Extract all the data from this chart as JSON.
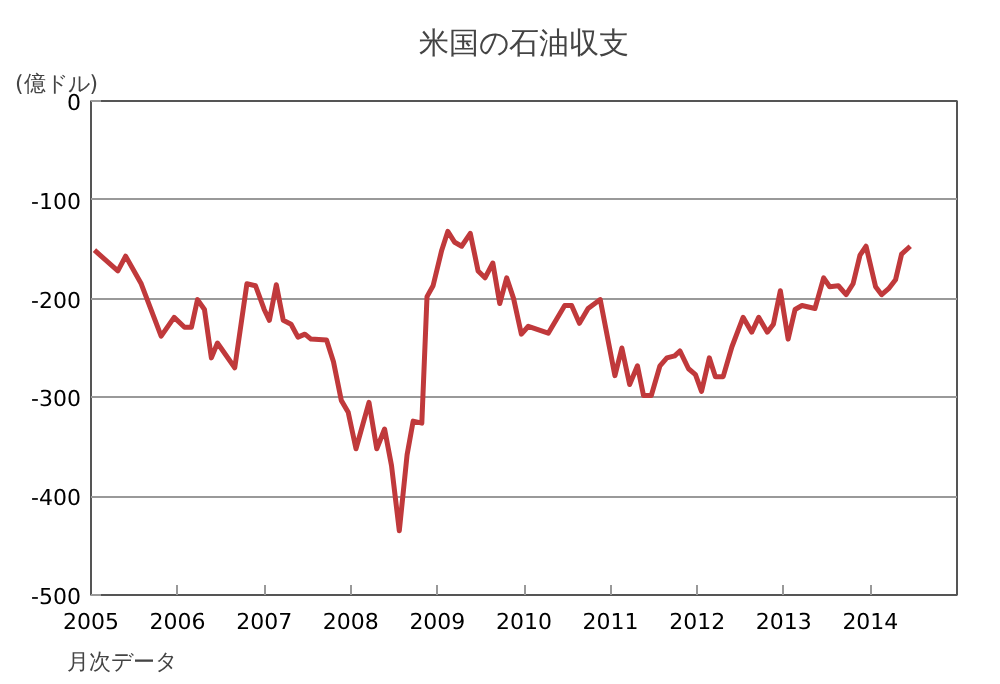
{
  "chart_data": {
    "type": "line",
    "title": "米国の石油収支",
    "ylabel": "(億ドル)",
    "annotations": [
      "月次データ"
    ],
    "x": [
      2005.04,
      2005.31,
      2005.4,
      2005.58,
      2005.81,
      2005.96,
      2006.08,
      2006.16,
      2006.23,
      2006.31,
      2006.39,
      2006.46,
      2006.66,
      2006.8,
      2006.9,
      2007.0,
      2007.06,
      2007.14,
      2007.22,
      2007.31,
      2007.39,
      2007.47,
      2007.54,
      2007.72,
      2007.8,
      2007.89,
      2007.97,
      2008.06,
      2008.21,
      2008.3,
      2008.39,
      2008.47,
      2008.56,
      2008.65,
      2008.72,
      2008.82,
      2008.88,
      2008.95,
      2009.05,
      2009.12,
      2009.2,
      2009.28,
      2009.38,
      2009.47,
      2009.55,
      2009.64,
      2009.72,
      2009.8,
      2009.88,
      2009.97,
      2010.05,
      2010.28,
      2010.47,
      2010.55,
      2010.64,
      2010.74,
      2010.88,
      2011.05,
      2011.13,
      2011.22,
      2011.31,
      2011.38,
      2011.47,
      2011.57,
      2011.65,
      2011.74,
      2011.8,
      2011.9,
      2011.98,
      2012.05,
      2012.14,
      2012.21,
      2012.3,
      2012.4,
      2012.53,
      2012.63,
      2012.71,
      2012.81,
      2012.88,
      2012.96,
      2013.05,
      2013.13,
      2013.21,
      2013.36,
      2013.46,
      2013.53,
      2013.63,
      2013.72,
      2013.8,
      2013.88,
      2013.95,
      2014.06,
      2014.13,
      2014.21,
      2014.29,
      2014.36,
      2014.46
    ],
    "series": [
      {
        "color": "#c0393b",
        "values": [
          -151,
          -172,
          -157,
          -185,
          -238,
          -219,
          -229,
          -229,
          -201,
          -211,
          -260,
          -245,
          -270,
          -185,
          -187,
          -211,
          -222,
          -186,
          -222,
          -226,
          -239,
          -236,
          -241,
          -242,
          -264,
          -303,
          -315,
          -352,
          -305,
          -352,
          -332,
          -369,
          -435,
          -358,
          -324,
          -326,
          -198,
          -187,
          -151,
          -132,
          -143,
          -147,
          -134,
          -172,
          -179,
          -164,
          -205,
          -179,
          -200,
          -236,
          -228,
          -235,
          -207,
          -207,
          -225,
          -210,
          -201,
          -278,
          -250,
          -287,
          -268,
          -298,
          -298,
          -268,
          -260,
          -258,
          -253,
          -271,
          -277,
          -294,
          -260,
          -279,
          -279,
          -249,
          -219,
          -234,
          -219,
          -234,
          -226,
          -192,
          -241,
          -211,
          -207,
          -210,
          -179,
          -188,
          -187,
          -196,
          -185,
          -156,
          -147,
          -188,
          -196,
          -190,
          -181,
          -155,
          -147
        ]
      }
    ],
    "xlim": [
      2005,
      2015
    ],
    "xticks": [
      2005,
      2006,
      2007,
      2008,
      2009,
      2010,
      2011,
      2012,
      2013,
      2014
    ],
    "ylim": [
      -500,
      0
    ],
    "yticks": [
      0,
      -100,
      -200,
      -300,
      -400,
      -500
    ],
    "grid": "y"
  }
}
